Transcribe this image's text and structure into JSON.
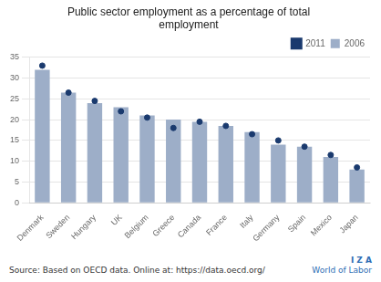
{
  "chart_data": {
    "type": "bar",
    "title": "Public sector employment as a percentage of total\nemployment",
    "categories": [
      "Denmark",
      "Sweden",
      "Hungary",
      "UK",
      "Belgium",
      "Greece",
      "Canada",
      "France",
      "Italy",
      "Germany",
      "Spain",
      "Mexico",
      "Japan"
    ],
    "series": [
      {
        "name": "2006",
        "type": "bar",
        "color": "#9daec8",
        "values": [
          32,
          26.5,
          24,
          23,
          21,
          20,
          19.5,
          18.5,
          17,
          14,
          13.5,
          11,
          8
        ]
      },
      {
        "name": "2011",
        "type": "scatter",
        "color": "#1a3a6e",
        "marker": "circle",
        "values": [
          33,
          26.5,
          24.5,
          22,
          20.5,
          18,
          19.5,
          18.5,
          16.5,
          15,
          13.5,
          11.5,
          8.5
        ]
      }
    ],
    "ylim": [
      0,
      35
    ],
    "yticks": [
      0,
      5,
      10,
      15,
      20,
      25,
      30,
      35
    ],
    "grid": true,
    "legend": "upper right",
    "annotations": [
      "Source: Based on OECD data. Online at: https://data.oecd.org/",
      "I Z A",
      "World of Labor"
    ]
  }
}
